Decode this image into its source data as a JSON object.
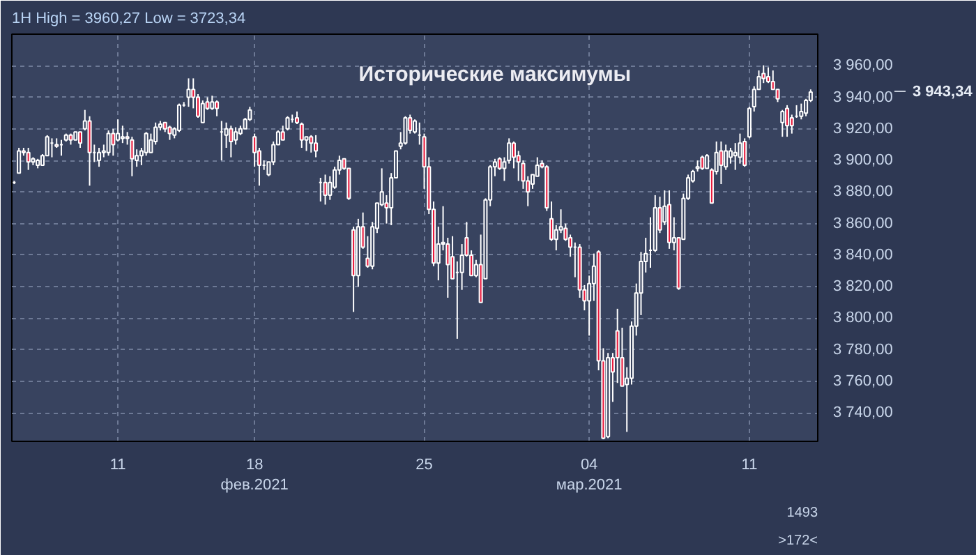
{
  "chart_data": {
    "type": "candlestick",
    "title": "1H High = 3960,27 Low = 3723,34",
    "categories": [
      null,
      null,
      null,
      null,
      null,
      null,
      null,
      null,
      null,
      null,
      null,
      null,
      null,
      null,
      null,
      null,
      null,
      null,
      null,
      null,
      null,
      null,
      "11",
      null,
      null,
      null,
      null,
      null,
      null,
      null,
      null,
      null,
      null,
      null,
      null,
      null,
      null,
      null,
      null,
      null,
      null,
      null,
      null,
      null,
      null,
      null,
      null,
      null,
      null,
      null,
      null,
      "18\nфев.2021",
      null,
      null,
      null,
      null,
      null,
      null,
      null,
      null,
      null,
      null,
      null,
      null,
      null,
      null,
      null,
      null,
      null,
      null,
      null,
      null,
      null,
      null,
      null,
      null,
      null,
      null,
      null,
      null,
      null,
      null,
      null,
      null,
      null,
      null,
      null,
      "25",
      null,
      null,
      null,
      null,
      null,
      null,
      null,
      null,
      null,
      null,
      null,
      null,
      null,
      null,
      null,
      null,
      null,
      null,
      null,
      null,
      null,
      null,
      null,
      null,
      null,
      null,
      null,
      null,
      null,
      null,
      null,
      null,
      null,
      null,
      "04\nмар.2021",
      null,
      null,
      null,
      null,
      null,
      null,
      null,
      null,
      null,
      null,
      null,
      null,
      null,
      null,
      null,
      null,
      null,
      null,
      null,
      null,
      null,
      null,
      null,
      null,
      null,
      null,
      null,
      null,
      null,
      null,
      null,
      null,
      null,
      "11",
      null,
      null,
      null,
      null,
      null,
      null,
      null,
      null,
      null,
      null,
      null,
      null,
      null
    ],
    "ohlc": [
      [
        3886,
        3887,
        3885,
        3886
      ],
      [
        3892,
        3908,
        3892,
        3906
      ],
      [
        3906,
        3908,
        3903,
        3905
      ],
      [
        3905,
        3908,
        3894,
        3899
      ],
      [
        3899,
        3902,
        3897,
        3901
      ],
      [
        3897,
        3901,
        3895,
        3900
      ],
      [
        3897,
        3904,
        3897,
        3903
      ],
      [
        3903,
        3916,
        3903,
        3915
      ],
      [
        3911,
        3914,
        3902,
        3911
      ],
      [
        3910,
        3914,
        3908,
        3909
      ],
      [
        3910,
        3913,
        3903,
        3910
      ],
      [
        3913,
        3917,
        3912,
        3916
      ],
      [
        3916,
        3917,
        3910,
        3913
      ],
      [
        3913,
        3918,
        3913,
        3918
      ],
      [
        3918,
        3918,
        3908,
        3911
      ],
      [
        3920,
        3932,
        3919,
        3925
      ],
      [
        3925,
        3928,
        3884,
        3905
      ],
      [
        3905,
        3910,
        3899,
        3905
      ],
      [
        3900,
        3908,
        3896,
        3905
      ],
      [
        3905,
        3910,
        3902,
        3906
      ],
      [
        3905,
        3919,
        3903,
        3917
      ],
      [
        3917,
        3920,
        3903,
        3910
      ],
      [
        3913,
        3926,
        3912,
        3917
      ],
      [
        3914,
        3922,
        3911,
        3915
      ],
      [
        3915,
        3918,
        3910,
        3914
      ],
      [
        3913,
        3915,
        3890,
        3901
      ],
      [
        3900,
        3907,
        3896,
        3903
      ],
      [
        3903,
        3908,
        3897,
        3906
      ],
      [
        3905,
        3918,
        3903,
        3917
      ],
      [
        3905,
        3917,
        3905,
        3913
      ],
      [
        3912,
        3924,
        3910,
        3921
      ],
      [
        3921,
        3925,
        3919,
        3923
      ],
      [
        3924,
        3924,
        3918,
        3920
      ],
      [
        3921,
        3922,
        3913,
        3917
      ],
      [
        3916,
        3921,
        3914,
        3920
      ],
      [
        3919,
        3936,
        3918,
        3935
      ],
      [
        3935,
        3937,
        3934,
        3935
      ],
      [
        3940,
        3952,
        3934,
        3945
      ],
      [
        3945,
        3952,
        3933,
        3940
      ],
      [
        3940,
        3942,
        3927,
        3928
      ],
      [
        3924,
        3938,
        3924,
        3936
      ],
      [
        3937,
        3940,
        3932,
        3933
      ],
      [
        3933,
        3941,
        3932,
        3937
      ],
      [
        3937,
        3938,
        3928,
        3933
      ],
      [
        3918,
        3925,
        3900,
        3918
      ],
      [
        3916,
        3924,
        3908,
        3920
      ],
      [
        3920,
        3922,
        3902,
        3912
      ],
      [
        3913,
        3921,
        3910,
        3918
      ],
      [
        3917,
        3922,
        3916,
        3920
      ],
      [
        3920,
        3927,
        3920,
        3926
      ],
      [
        3926,
        3934,
        3925,
        3932
      ],
      [
        3915,
        3917,
        3896,
        3905
      ],
      [
        3906,
        3908,
        3884,
        3897
      ],
      [
        3897,
        3900,
        3894,
        3897
      ],
      [
        3891,
        3899,
        3890,
        3899
      ],
      [
        3899,
        3912,
        3897,
        3910
      ],
      [
        3910,
        3919,
        3910,
        3918
      ],
      [
        3918,
        3922,
        3913,
        3913
      ],
      [
        3920,
        3928,
        3919,
        3927
      ],
      [
        3926,
        3929,
        3924,
        3926
      ],
      [
        3927,
        3931,
        3923,
        3924
      ],
      [
        3923,
        3924,
        3908,
        3913
      ],
      [
        3913,
        3915,
        3906,
        3915
      ],
      [
        3915,
        3916,
        3905,
        3911
      ],
      [
        3911,
        3916,
        3902,
        3906
      ],
      [
        3886,
        3889,
        3874,
        3886
      ],
      [
        3886,
        3891,
        3872,
        3878
      ],
      [
        3878,
        3890,
        3875,
        3886
      ],
      [
        3883,
        3896,
        3882,
        3894
      ],
      [
        3894,
        3903,
        3891,
        3900
      ],
      [
        3901,
        3901,
        3894,
        3895
      ],
      [
        3895,
        3895,
        3875,
        3876
      ],
      [
        3856,
        3858,
        3804,
        3827
      ],
      [
        3827,
        3863,
        3820,
        3858
      ],
      [
        3858,
        3867,
        3844,
        3845
      ],
      [
        3838,
        3852,
        3832,
        3833
      ],
      [
        3833,
        3861,
        3831,
        3858
      ],
      [
        3857,
        3873,
        3854,
        3873
      ],
      [
        3872,
        3895,
        3871,
        3880
      ],
      [
        3873,
        3878,
        3860,
        3870
      ],
      [
        3870,
        3892,
        3859,
        3889
      ],
      [
        3889,
        3906,
        3889,
        3906
      ],
      [
        3909,
        3918,
        3907,
        3911
      ],
      [
        3911,
        3928,
        3910,
        3927
      ],
      [
        3927,
        3929,
        3917,
        3919
      ],
      [
        3918,
        3926,
        3917,
        3925
      ],
      [
        3916,
        3924,
        3910,
        3916
      ],
      [
        3915,
        3917,
        3882,
        3896
      ],
      [
        3896,
        3902,
        3866,
        3869
      ],
      [
        3869,
        3874,
        3833,
        3835
      ],
      [
        3835,
        3858,
        3824,
        3847
      ],
      [
        3847,
        3871,
        3843,
        3848
      ],
      [
        3847,
        3851,
        3813,
        3834
      ],
      [
        3839,
        3852,
        3825,
        3825
      ],
      [
        3829,
        3836,
        3787,
        3829
      ],
      [
        3829,
        3847,
        3818,
        3840
      ],
      [
        3851,
        3861,
        3839,
        3840
      ],
      [
        3840,
        3843,
        3827,
        3827
      ],
      [
        3827,
        3837,
        3826,
        3834
      ],
      [
        3834,
        3853,
        3810,
        3810
      ],
      [
        3825,
        3876,
        3825,
        3875
      ],
      [
        3875,
        3897,
        3871,
        3896
      ],
      [
        3896,
        3901,
        3890,
        3899
      ],
      [
        3901,
        3902,
        3894,
        3895
      ],
      [
        3895,
        3902,
        3887,
        3899
      ],
      [
        3900,
        3914,
        3898,
        3911
      ],
      [
        3911,
        3912,
        3895,
        3902
      ],
      [
        3903,
        3906,
        3887,
        3899
      ],
      [
        3898,
        3900,
        3882,
        3887
      ],
      [
        3887,
        3890,
        3871,
        3880
      ],
      [
        3885,
        3891,
        3882,
        3891
      ],
      [
        3890,
        3902,
        3890,
        3897
      ],
      [
        3898,
        3900,
        3895,
        3896
      ],
      [
        3896,
        3897,
        3868,
        3870
      ],
      [
        3863,
        3874,
        3849,
        3850
      ],
      [
        3850,
        3859,
        3843,
        3856
      ],
      [
        3856,
        3869,
        3854,
        3858
      ],
      [
        3857,
        3860,
        3849,
        3850
      ],
      [
        3851,
        3853,
        3839,
        3845
      ],
      [
        3845,
        3848,
        3826,
        3845
      ],
      [
        3845,
        3847,
        3813,
        3818
      ],
      [
        3818,
        3821,
        3805,
        3811
      ],
      [
        3811,
        3827,
        3789,
        3822
      ],
      [
        3822,
        3841,
        3811,
        3833
      ],
      [
        3842,
        3843,
        3767,
        3773
      ],
      [
        3773,
        3781,
        3723.34,
        3724
      ],
      [
        3725,
        3778,
        3724,
        3775
      ],
      [
        3775,
        3778,
        3747,
        3766
      ],
      [
        3792,
        3806,
        3759,
        3775
      ],
      [
        3775,
        3794,
        3757,
        3757
      ],
      [
        3758,
        3769,
        3728,
        3762
      ],
      [
        3762,
        3798,
        3758,
        3795
      ],
      [
        3795,
        3822,
        3789,
        3816
      ],
      [
        3816,
        3842,
        3802,
        3836
      ],
      [
        3836,
        3851,
        3829,
        3841
      ],
      [
        3843,
        3864,
        3832,
        3843
      ],
      [
        3843,
        3878,
        3842,
        3870
      ],
      [
        3870,
        3877,
        3854,
        3856
      ],
      [
        3861,
        3881,
        3859,
        3871
      ],
      [
        3872,
        3881,
        3844,
        3848
      ],
      [
        3848,
        3864,
        3843,
        3851
      ],
      [
        3851,
        3851,
        3818,
        3819
      ],
      [
        3850,
        3879,
        3850,
        3876
      ],
      [
        3876,
        3891,
        3875,
        3889
      ],
      [
        3887,
        3894,
        3886,
        3893
      ],
      [
        3895,
        3900,
        3893,
        3896
      ],
      [
        3902,
        3903,
        3894,
        3895
      ],
      [
        3895,
        3904,
        3895,
        3903
      ],
      [
        3894,
        3895,
        3873,
        3873
      ],
      [
        3893,
        3912,
        3891,
        3905
      ],
      [
        3906,
        3912,
        3885,
        3897
      ],
      [
        3896,
        3910,
        3894,
        3906
      ],
      [
        3902,
        3908,
        3898,
        3906
      ],
      [
        3903,
        3911,
        3894,
        3905
      ],
      [
        3902,
        3917,
        3898,
        3911
      ],
      [
        3912,
        3914,
        3896,
        3897
      ],
      [
        3915,
        3934,
        3914,
        3933
      ],
      [
        3934,
        3947,
        3931,
        3945
      ],
      [
        3945,
        3957,
        3945,
        3953
      ],
      [
        3955,
        3960.27,
        3949,
        3952
      ],
      [
        3953,
        3959,
        3949,
        3950
      ],
      [
        3950,
        3957,
        3945,
        3945
      ],
      [
        3945,
        3945,
        3937,
        3939
      ],
      [
        3924,
        3932,
        3915,
        3931
      ],
      [
        3933,
        3935,
        3915,
        3922
      ],
      [
        3927,
        3929,
        3917,
        3922
      ],
      [
        3928,
        3935,
        3927,
        3928
      ],
      [
        3928,
        3936,
        3926,
        3931
      ],
      [
        3930,
        3939,
        3928,
        3938
      ],
      [
        3938,
        3945,
        3937,
        3943.34
      ]
    ],
    "ylim": [
      3722,
      3980
    ],
    "yticks": [
      {
        "value": 3740,
        "label": "3 740,00"
      },
      {
        "value": 3760,
        "label": "3 760,00"
      },
      {
        "value": 3780,
        "label": "3 780,00"
      },
      {
        "value": 3800,
        "label": "3 800,00"
      },
      {
        "value": 3820,
        "label": "3 820,00"
      },
      {
        "value": 3840,
        "label": "3 840,00"
      },
      {
        "value": 3860,
        "label": "3 860,00"
      },
      {
        "value": 3880,
        "label": "3 880,00"
      },
      {
        "value": 3900,
        "label": "3 900,00"
      },
      {
        "value": 3920,
        "label": "3 920,00"
      },
      {
        "value": 3940,
        "label": "3 940,00"
      },
      {
        "value": 3960,
        "label": "3 960,00"
      }
    ],
    "grid": true,
    "annotations": [
      "Исторические максимумы",
      "3 943,34",
      "1493",
      ">172<"
    ]
  }
}
